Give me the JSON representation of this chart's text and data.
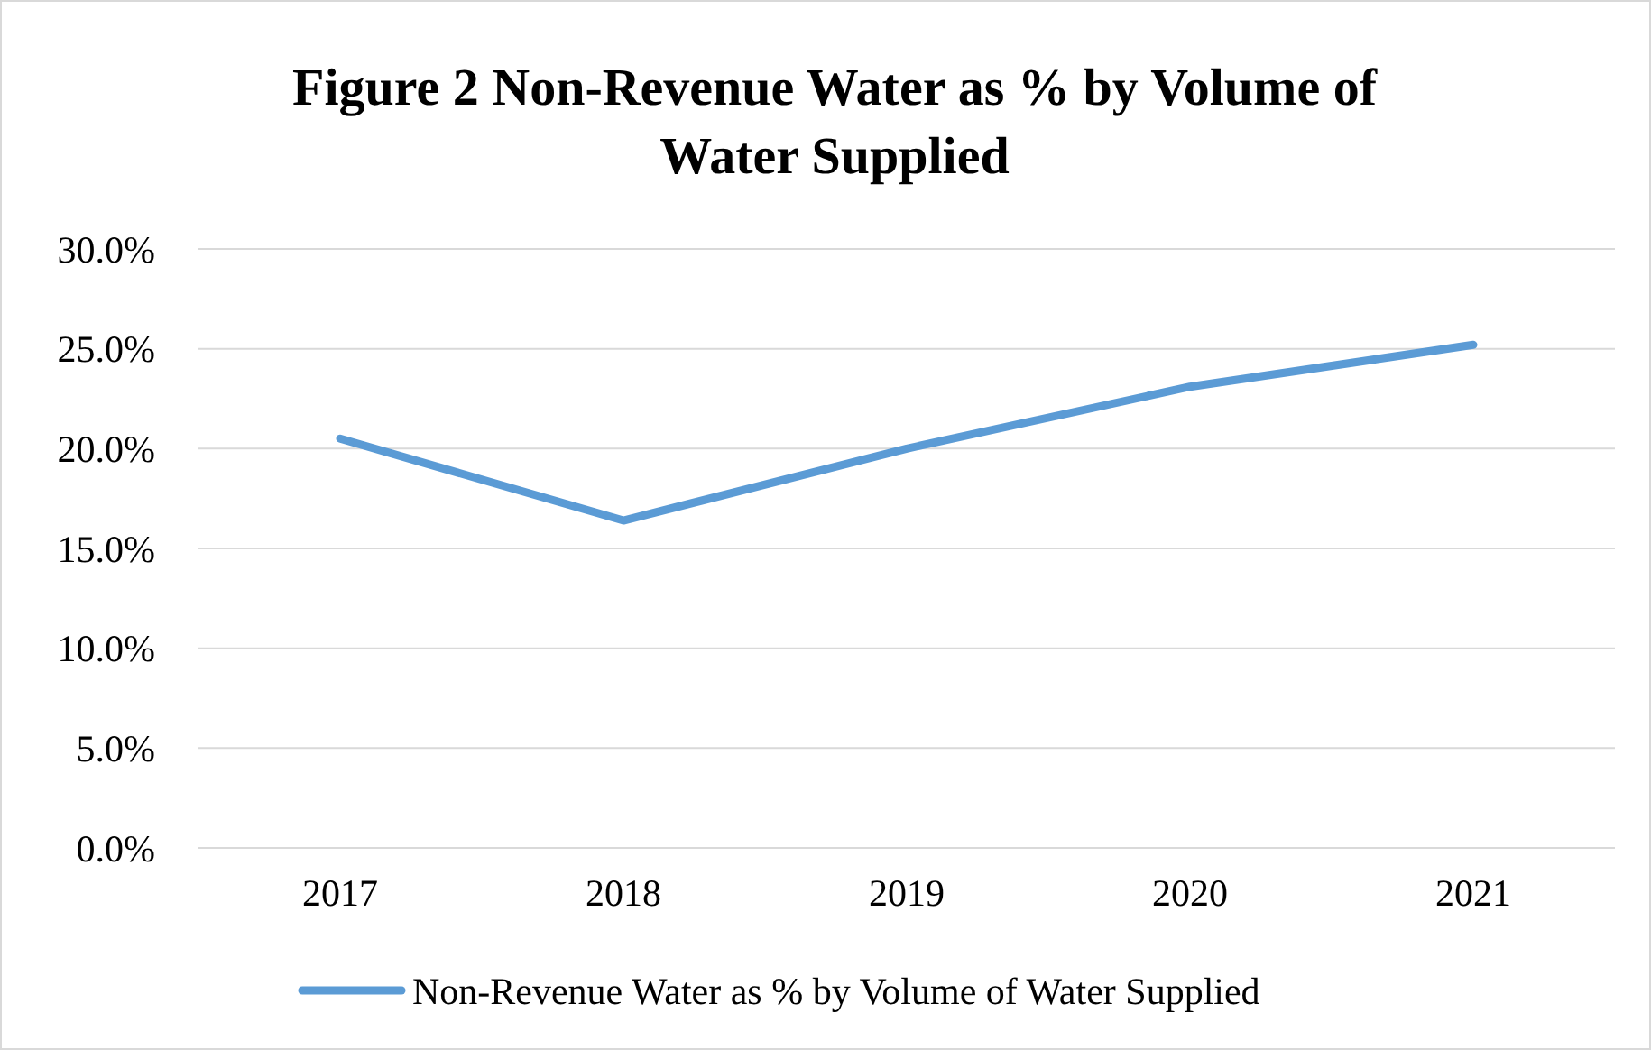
{
  "chart_data": {
    "type": "line",
    "title": "Figure 2 Non-Revenue Water as % by Volume of Water Supplied",
    "categories": [
      "2017",
      "2018",
      "2019",
      "2020",
      "2021"
    ],
    "series": [
      {
        "name": "Non-Revenue Water as % by Volume of Water Supplied",
        "color": "#5b9bd5",
        "values": [
          20.5,
          16.4,
          20.0,
          23.1,
          25.2
        ]
      }
    ],
    "ylim": [
      0,
      30
    ],
    "yticks": [
      {
        "value": 0,
        "label": "0.0%"
      },
      {
        "value": 5,
        "label": "5.0%"
      },
      {
        "value": 10,
        "label": "10.0%"
      },
      {
        "value": 15,
        "label": "15.0%"
      },
      {
        "value": 20,
        "label": "20.0%"
      },
      {
        "value": 25,
        "label": "25.0%"
      },
      {
        "value": 30,
        "label": "30.0%"
      }
    ],
    "grid": "y",
    "legend": "bottom",
    "marker": "none",
    "line_style": "solid"
  }
}
